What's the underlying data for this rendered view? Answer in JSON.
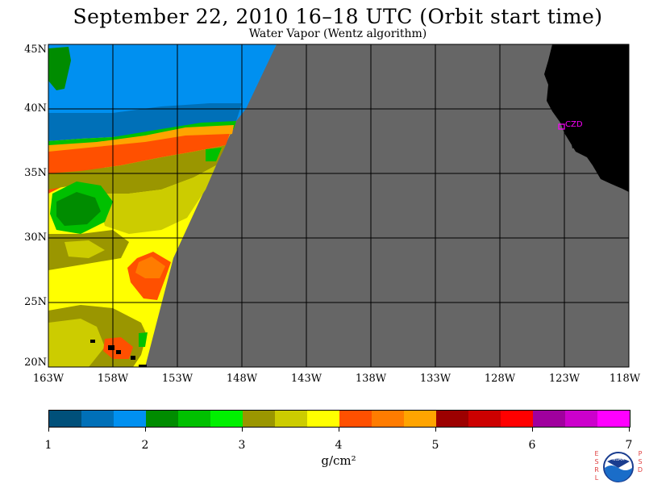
{
  "title": "September 22, 2010  16–18 UTC  (Orbit start time)",
  "subtitle": "Water Vapor (Wentz algorithm)",
  "map": {
    "lat_labels": [
      "45N",
      "40N",
      "35N",
      "30N",
      "25N",
      "20N"
    ],
    "lon_labels": [
      "163W",
      "158W",
      "153W",
      "148W",
      "143W",
      "138W",
      "133W",
      "128W",
      "123W",
      "118W"
    ],
    "station_label": "CZD",
    "colors": {
      "no_data": "#666666",
      "land": "#000000",
      "station": "#ff00ff"
    }
  },
  "colorbar": {
    "unit": "g/cm²",
    "tick_labels": [
      "1",
      "2",
      "3",
      "4",
      "5",
      "6",
      "7"
    ],
    "colors": [
      "#00507a",
      "#0070b8",
      "#0090f0",
      "#008c00",
      "#00c000",
      "#00f000",
      "#9a9600",
      "#cccc00",
      "#ffff00",
      "#ff5000",
      "#ff7c00",
      "#ffa400",
      "#9c0000",
      "#cc0000",
      "#ff0000",
      "#a0009e",
      "#cc00cc",
      "#ff00ff"
    ]
  },
  "logo": {
    "left_letters": [
      "E",
      "S",
      "R",
      "L"
    ],
    "right_letters": [
      "P",
      "S",
      "D"
    ],
    "center_text": "NOAA"
  }
}
